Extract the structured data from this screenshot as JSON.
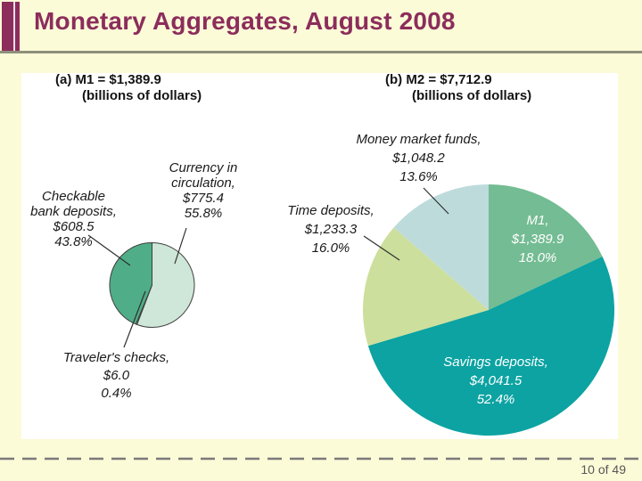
{
  "slide": {
    "title": "Monetary Aggregates, August 2008",
    "footer": {
      "page_indicator": "10 of 49"
    }
  },
  "colors": {
    "slide_background": "#fbfbd8",
    "accent_maroon": "#8c2d5b",
    "title_underline_gray": "#8f8f7c",
    "panel_background": "#ffffff",
    "label_text": "#1a1a1a",
    "inside_label_text": "#ffffff",
    "pie_outline": "#3f3f3f",
    "dashed_line": "#7a7a7a",
    "footer_text": "#575757"
  },
  "chart_data": [
    {
      "type": "pie",
      "title": "(a) M1 = $1,389.9",
      "subtitle": "(billions of dollars)",
      "total": 1389.9,
      "unit": "billions of dollars",
      "slices": [
        {
          "label": "Currency in circulation",
          "value": 775.4,
          "pct": 55.8,
          "color": "#cfe7d8",
          "label_inside": false,
          "label_lines": [
            "Currency in",
            "circulation,",
            "$775.4",
            "55.8%"
          ]
        },
        {
          "label": "Traveler's checks",
          "value": 6.0,
          "pct": 0.4,
          "color": "#f1eec5",
          "label_inside": false,
          "label_lines": [
            "Traveler's checks,",
            "$6.0",
            "0.4%"
          ]
        },
        {
          "label": "Checkable bank deposits",
          "value": 608.5,
          "pct": 43.8,
          "color": "#4fae88",
          "label_inside": false,
          "label_lines": [
            "Checkable",
            "bank deposits,",
            "$608.5",
            "43.8%"
          ]
        }
      ]
    },
    {
      "type": "pie",
      "title": "(b) M2 = $7,712.9",
      "subtitle": "(billions of dollars)",
      "total": 7712.9,
      "unit": "billions of dollars",
      "slices": [
        {
          "label": "M1",
          "value": 1389.9,
          "pct": 18.0,
          "color": "#74bc93",
          "label_inside": true,
          "label_lines": [
            "M1,",
            "$1,389.9",
            "18.0%"
          ]
        },
        {
          "label": "Savings deposits",
          "value": 4041.5,
          "pct": 52.4,
          "color": "#0ca3a2",
          "label_inside": true,
          "label_lines": [
            "Savings deposits,",
            "$4,041.5",
            "52.4%"
          ]
        },
        {
          "label": "Time deposits",
          "value": 1233.3,
          "pct": 16.0,
          "color": "#cddf9c",
          "label_inside": false,
          "label_lines": [
            "Time deposits,",
            "$1,233.3",
            "16.0%"
          ]
        },
        {
          "label": "Money market funds",
          "value": 1048.2,
          "pct": 13.6,
          "color": "#bedbdc",
          "label_inside": false,
          "label_lines": [
            "Money market funds,",
            "$1,048.2",
            "13.6%"
          ]
        }
      ]
    }
  ]
}
